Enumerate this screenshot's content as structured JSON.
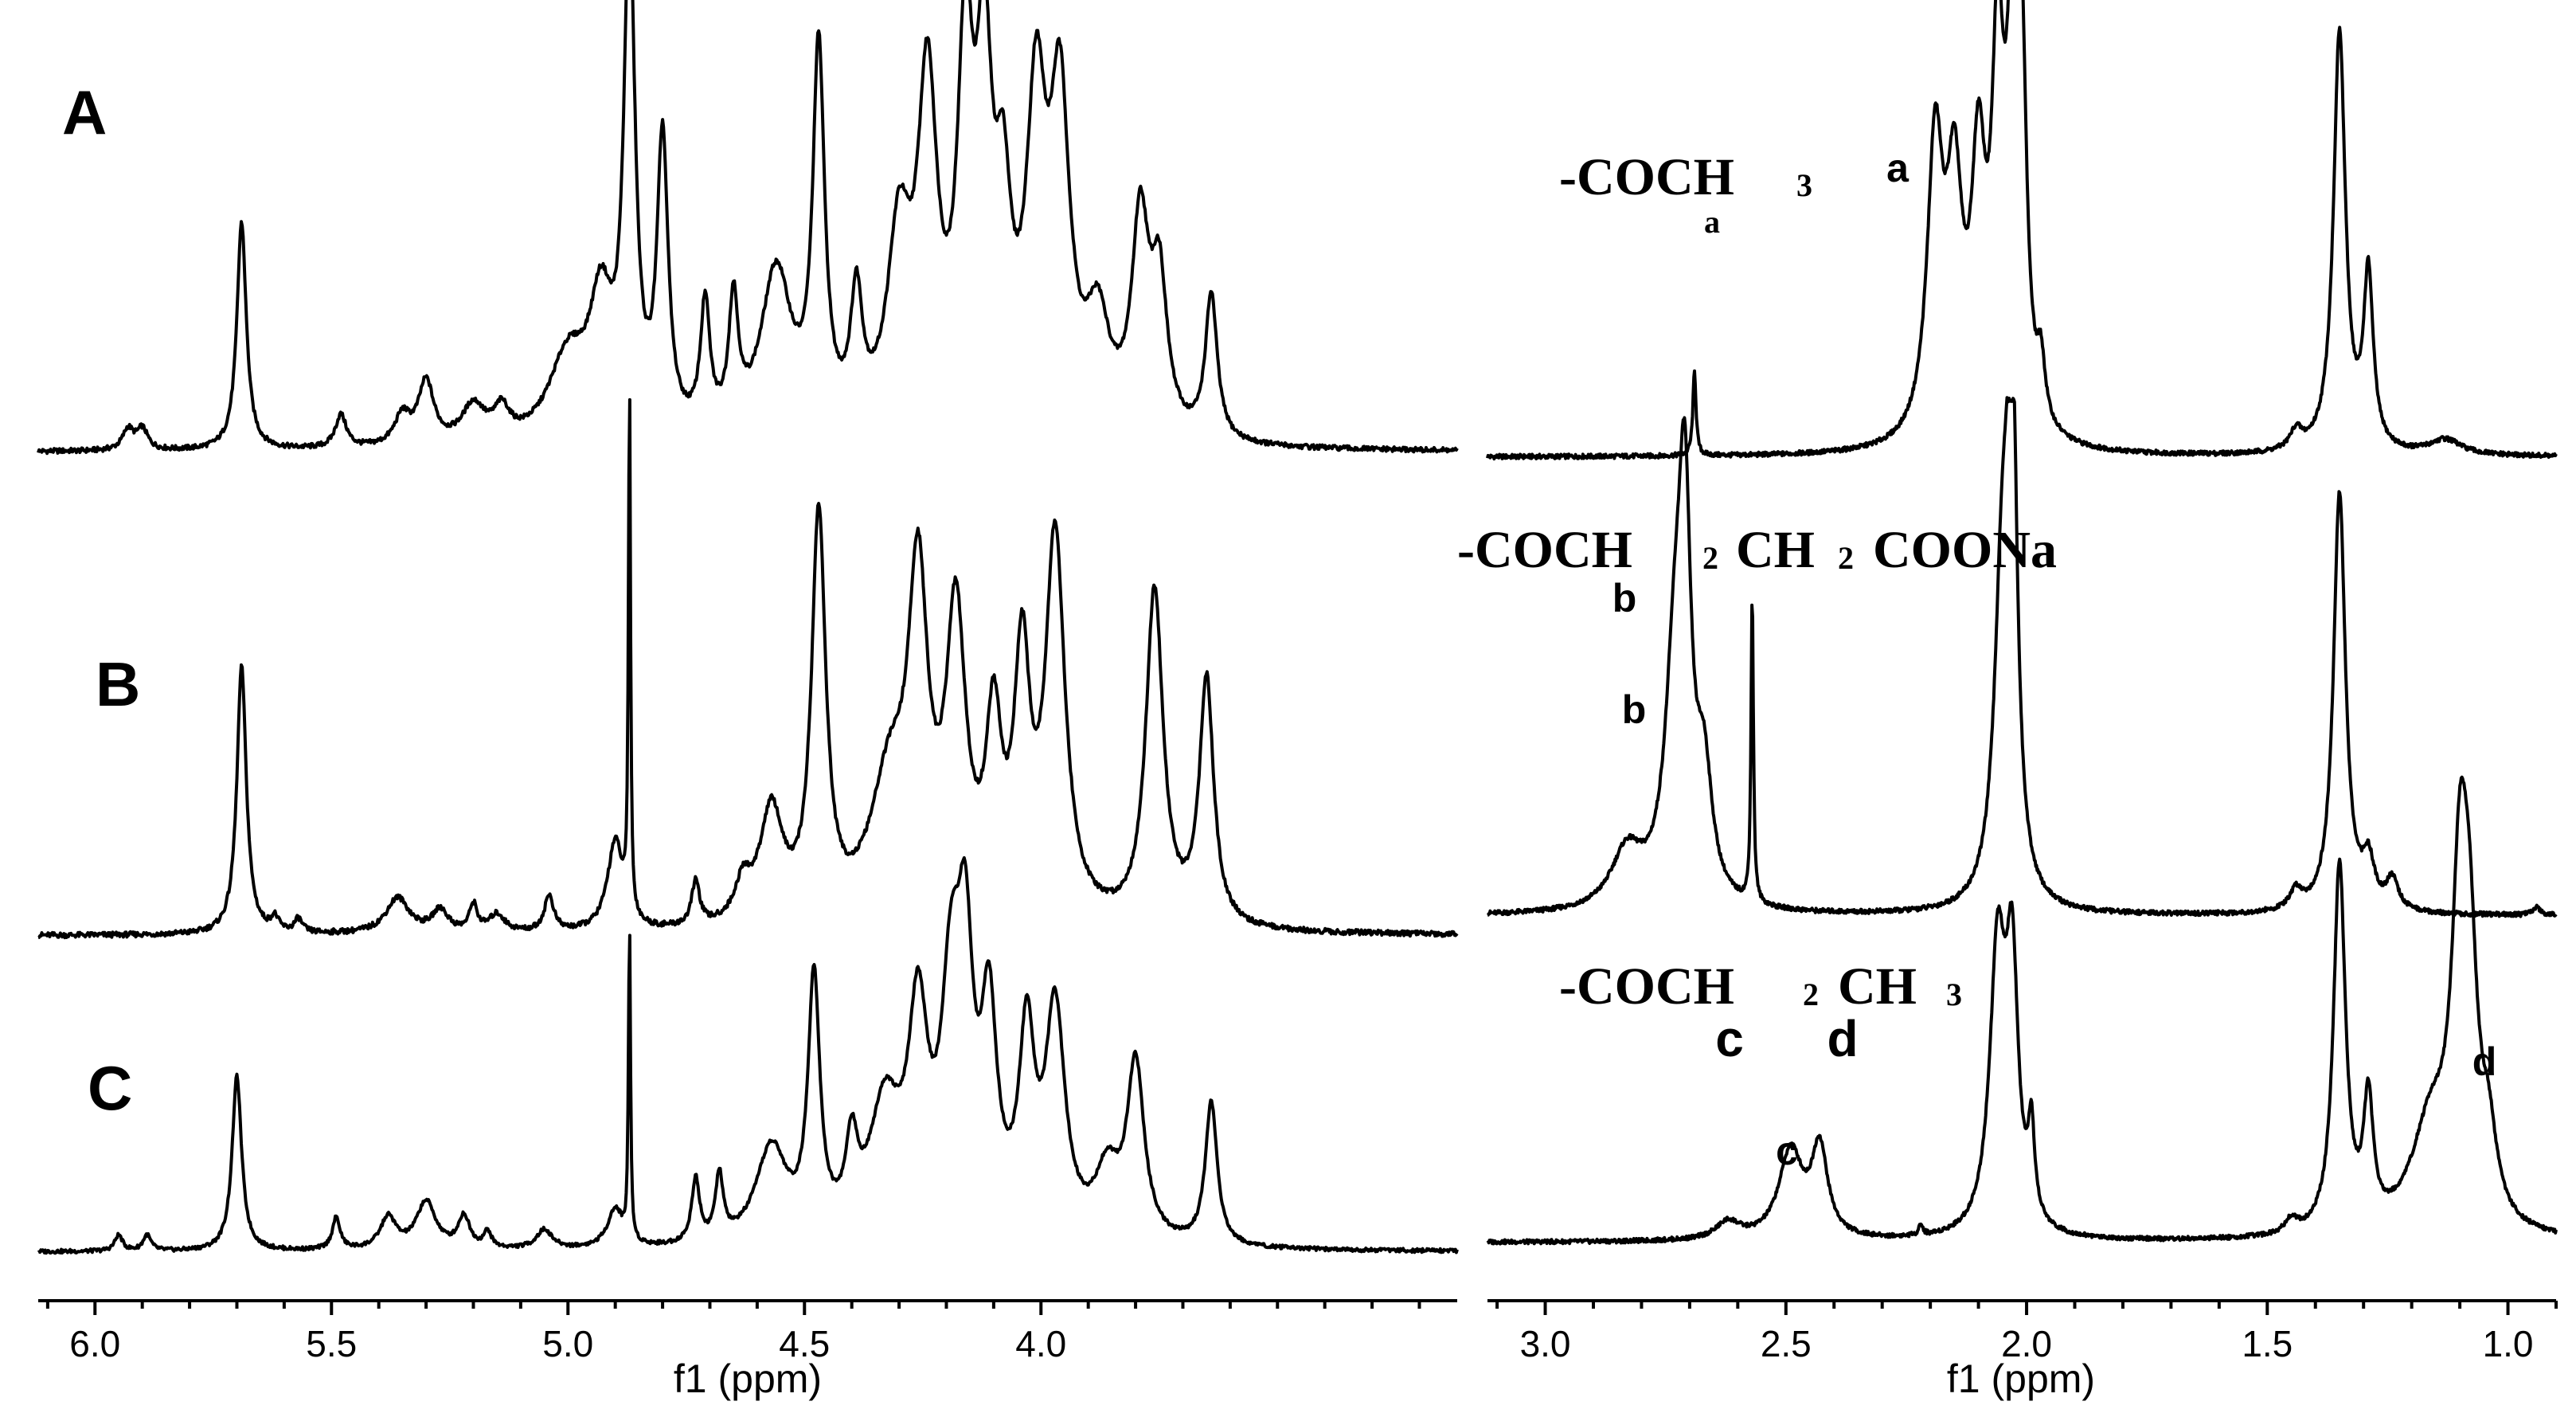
{
  "chart_data": [
    {
      "type": "line",
      "panel": "left",
      "xlabel": "f1 (ppm)",
      "x_reversed": true,
      "xlim": [
        6.12,
        3.12
      ],
      "xticks": [
        6.0,
        5.5,
        5.0,
        4.5,
        4.0
      ],
      "xtick_labels": [
        "6.0",
        "5.5",
        "5.0",
        "4.5",
        "4.0"
      ],
      "grid": false,
      "series": [
        {
          "name": "A",
          "peaks": [
            [
              5.93,
              0.05,
              0.014
            ],
            [
              5.9,
              0.05,
              0.014
            ],
            [
              5.69,
              0.55,
              0.012
            ],
            [
              5.48,
              0.08,
              0.014
            ],
            [
              5.35,
              0.07,
              0.02
            ],
            [
              5.3,
              0.15,
              0.02
            ],
            [
              5.2,
              0.09,
              0.03
            ],
            [
              5.14,
              0.07,
              0.02
            ],
            [
              5.0,
              0.2,
              0.05
            ],
            [
              4.93,
              0.3,
              0.03
            ],
            [
              4.87,
              1.2,
              0.014
            ],
            [
              4.8,
              0.7,
              0.014
            ],
            [
              4.71,
              0.3,
              0.012
            ],
            [
              4.65,
              0.3,
              0.012
            ],
            [
              4.56,
              0.4,
              0.04
            ],
            [
              4.47,
              0.9,
              0.015
            ],
            [
              4.39,
              0.3,
              0.015
            ],
            [
              4.3,
              0.45,
              0.03
            ],
            [
              4.24,
              0.8,
              0.025
            ],
            [
              4.16,
              0.85,
              0.02
            ],
            [
              4.12,
              0.8,
              0.02
            ],
            [
              4.08,
              0.45,
              0.02
            ],
            [
              4.01,
              0.75,
              0.025
            ],
            [
              3.96,
              0.75,
              0.025
            ],
            [
              3.88,
              0.25,
              0.03
            ],
            [
              3.79,
              0.5,
              0.022
            ],
            [
              3.75,
              0.35,
              0.02
            ],
            [
              3.64,
              0.35,
              0.015
            ]
          ]
        },
        {
          "name": "B",
          "peaks": [
            [
              5.69,
              0.6,
              0.012
            ],
            [
              5.62,
              0.03,
              0.01
            ],
            [
              5.57,
              0.03,
              0.01
            ],
            [
              5.36,
              0.08,
              0.03
            ],
            [
              5.27,
              0.05,
              0.02
            ],
            [
              5.2,
              0.06,
              0.01
            ],
            [
              5.15,
              0.04,
              0.02
            ],
            [
              5.04,
              0.08,
              0.012
            ],
            [
              4.9,
              0.2,
              0.02
            ],
            [
              4.87,
              1.2,
              0.0025
            ],
            [
              4.73,
              0.1,
              0.01
            ],
            [
              4.63,
              0.08,
              0.02
            ],
            [
              4.57,
              0.25,
              0.03
            ],
            [
              4.47,
              0.9,
              0.018
            ],
            [
              4.32,
              0.3,
              0.05
            ],
            [
              4.26,
              0.7,
              0.025
            ],
            [
              4.18,
              0.65,
              0.025
            ],
            [
              4.1,
              0.4,
              0.02
            ],
            [
              4.04,
              0.55,
              0.02
            ],
            [
              3.97,
              0.85,
              0.025
            ],
            [
              3.76,
              0.75,
              0.022
            ],
            [
              3.65,
              0.55,
              0.018
            ]
          ]
        },
        {
          "name": "C",
          "peaks": [
            [
              5.95,
              0.05,
              0.01
            ],
            [
              5.89,
              0.05,
              0.01
            ],
            [
              5.7,
              0.55,
              0.012
            ],
            [
              5.49,
              0.1,
              0.01
            ],
            [
              5.38,
              0.1,
              0.02
            ],
            [
              5.3,
              0.15,
              0.025
            ],
            [
              5.22,
              0.1,
              0.015
            ],
            [
              5.17,
              0.05,
              0.01
            ],
            [
              5.05,
              0.06,
              0.02
            ],
            [
              4.9,
              0.12,
              0.02
            ],
            [
              4.87,
              1.0,
              0.0025
            ],
            [
              4.73,
              0.2,
              0.01
            ],
            [
              4.68,
              0.2,
              0.01
            ],
            [
              4.57,
              0.3,
              0.04
            ],
            [
              4.48,
              0.8,
              0.015
            ],
            [
              4.4,
              0.25,
              0.015
            ],
            [
              4.33,
              0.4,
              0.04
            ],
            [
              4.26,
              0.65,
              0.025
            ],
            [
              4.19,
              0.7,
              0.025
            ],
            [
              4.16,
              0.75,
              0.02
            ],
            [
              4.11,
              0.65,
              0.02
            ],
            [
              4.03,
              0.6,
              0.02
            ],
            [
              3.97,
              0.7,
              0.025
            ],
            [
              3.86,
              0.2,
              0.03
            ],
            [
              3.8,
              0.55,
              0.022
            ],
            [
              3.64,
              0.45,
              0.015
            ]
          ]
        }
      ]
    },
    {
      "type": "line",
      "panel": "right",
      "xlabel": "f1 (ppm)",
      "x_reversed": true,
      "xlim": [
        3.12,
        0.9
      ],
      "xticks": [
        3.0,
        2.5,
        2.0,
        1.5,
        1.0
      ],
      "xtick_labels": [
        "3.0",
        "2.5",
        "2.0",
        "1.5",
        "1.0"
      ],
      "grid": false,
      "series": [
        {
          "name": "A",
          "peaks": [
            [
              2.69,
              0.22,
              0.004
            ],
            [
              2.19,
              0.75,
              0.02
            ],
            [
              2.15,
              0.6,
              0.02
            ],
            [
              2.1,
              0.65,
              0.018
            ],
            [
              2.06,
              0.9,
              0.015
            ],
            [
              2.03,
              0.9,
              0.015
            ],
            [
              2.01,
              0.85,
              0.012
            ],
            [
              1.97,
              0.15,
              0.01
            ],
            [
              1.44,
              0.05,
              0.015
            ],
            [
              1.35,
              1.1,
              0.015
            ],
            [
              1.29,
              0.45,
              0.012
            ],
            [
              1.13,
              0.04,
              0.04
            ]
          ]
        },
        {
          "name": "B",
          "peaks": [
            [
              2.83,
              0.15,
              0.04
            ],
            [
              2.73,
              0.6,
              0.025
            ],
            [
              2.71,
              0.85,
              0.015
            ],
            [
              2.67,
              0.3,
              0.02
            ],
            [
              2.57,
              0.8,
              0.003
            ],
            [
              2.05,
              0.85,
              0.02
            ],
            [
              2.03,
              1.2,
              0.012
            ],
            [
              1.44,
              0.05,
              0.015
            ],
            [
              1.35,
              1.1,
              0.015
            ],
            [
              1.29,
              0.12,
              0.015
            ],
            [
              1.24,
              0.08,
              0.015
            ],
            [
              0.94,
              0.02,
              0.01
            ]
          ]
        },
        {
          "name": "C",
          "peaks": [
            [
              2.62,
              0.05,
              0.03
            ],
            [
              2.49,
              0.25,
              0.03
            ],
            [
              2.43,
              0.25,
              0.02
            ],
            [
              2.22,
              0.03,
              0.005
            ],
            [
              2.06,
              0.8,
              0.02
            ],
            [
              2.03,
              0.7,
              0.015
            ],
            [
              1.99,
              0.25,
              0.008
            ],
            [
              1.45,
              0.04,
              0.015
            ],
            [
              1.35,
              1.05,
              0.015
            ],
            [
              1.29,
              0.35,
              0.012
            ],
            [
              1.16,
              0.3,
              0.05
            ],
            [
              1.1,
              0.85,
              0.02
            ],
            [
              1.08,
              0.6,
              0.02
            ],
            [
              1.04,
              0.2,
              0.02
            ]
          ]
        }
      ]
    }
  ],
  "labels": {
    "trace_a": "A",
    "trace_b": "B",
    "trace_c": "C",
    "formula_a_main": "-COCH",
    "formula_a_sub3": "3",
    "formula_a_suba": "a",
    "peak_a": "a",
    "formula_b_main1": "-COCH",
    "formula_b_sub1": "2",
    "formula_b_main2": "CH",
    "formula_b_sub2": "2",
    "formula_b_main3": "COONa",
    "formula_b_b": "b",
    "peak_b": "b",
    "formula_c_main1": "-COCH",
    "formula_c_sub1": "2",
    "formula_c_main2": "CH",
    "formula_c_sub2": "3",
    "formula_c_c": "c",
    "formula_c_d": "d",
    "peak_c": "c",
    "peak_d": "d"
  }
}
